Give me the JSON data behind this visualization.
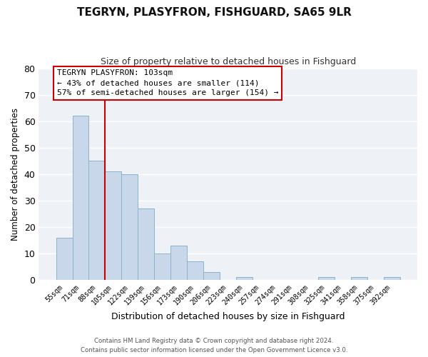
{
  "title": "TEGRYN, PLASYFRON, FISHGUARD, SA65 9LR",
  "subtitle": "Size of property relative to detached houses in Fishguard",
  "xlabel": "Distribution of detached houses by size in Fishguard",
  "ylabel": "Number of detached properties",
  "bar_color": "#c8d8ea",
  "bar_edge_color": "#8ab4cc",
  "background_color": "#eef2f7",
  "bin_labels": [
    "55sqm",
    "71sqm",
    "88sqm",
    "105sqm",
    "122sqm",
    "139sqm",
    "156sqm",
    "173sqm",
    "190sqm",
    "206sqm",
    "223sqm",
    "240sqm",
    "257sqm",
    "274sqm",
    "291sqm",
    "308sqm",
    "325sqm",
    "341sqm",
    "358sqm",
    "375sqm",
    "392sqm"
  ],
  "bar_heights": [
    16,
    62,
    45,
    41,
    40,
    27,
    10,
    13,
    7,
    3,
    0,
    1,
    0,
    0,
    0,
    0,
    1,
    0,
    1,
    0,
    1
  ],
  "ylim": [
    0,
    80
  ],
  "yticks": [
    0,
    10,
    20,
    30,
    40,
    50,
    60,
    70,
    80
  ],
  "vline_bin_index": 3,
  "vline_color": "#cc0000",
  "annotation_title": "TEGRYN PLASYFRON: 103sqm",
  "annotation_line1": "← 43% of detached houses are smaller (114)",
  "annotation_line2": "57% of semi-detached houses are larger (154) →",
  "annotation_box_color": "#ffffff",
  "annotation_box_edge": "#cc0000",
  "footer_line1": "Contains HM Land Registry data © Crown copyright and database right 2024.",
  "footer_line2": "Contains public sector information licensed under the Open Government Licence v3.0.",
  "figsize": [
    6.0,
    5.0
  ],
  "dpi": 100
}
